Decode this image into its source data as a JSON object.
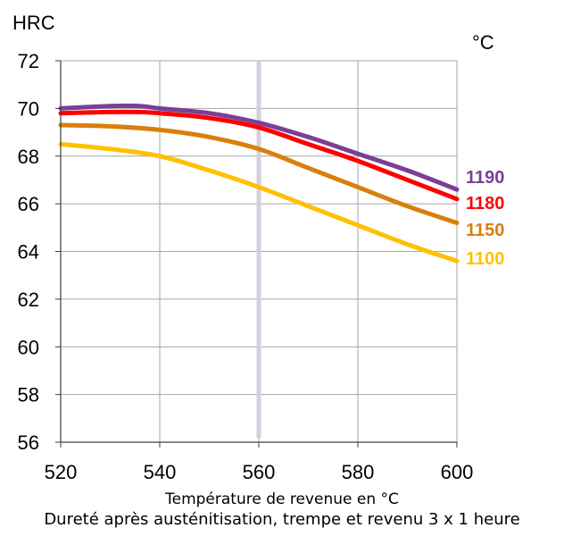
{
  "chart_data": {
    "type": "line",
    "ylabel": "HRC",
    "legend_unit": "°C",
    "xlabel": "Température de revenue en °C",
    "caption": "Dureté après austénitisation, trempe et revenu 3 x 1 heure",
    "xlim": [
      520,
      600
    ],
    "ylim": [
      56,
      72
    ],
    "x_ticks": [
      520,
      540,
      560,
      580,
      600
    ],
    "y_ticks": [
      56,
      58,
      60,
      62,
      64,
      66,
      68,
      70,
      72
    ],
    "grid": true,
    "reference_line_x": 560,
    "series": [
      {
        "name": "1190",
        "color": "#7B3F98",
        "x": [
          520,
          530,
          536,
          540,
          550,
          560,
          570,
          580,
          590,
          600
        ],
        "y": [
          70.0,
          70.1,
          70.1,
          70.0,
          69.8,
          69.4,
          68.8,
          68.1,
          67.4,
          66.6
        ]
      },
      {
        "name": "1180",
        "color": "#FF0000",
        "x": [
          520,
          530,
          536,
          540,
          550,
          560,
          570,
          580,
          590,
          600
        ],
        "y": [
          69.8,
          69.85,
          69.85,
          69.8,
          69.6,
          69.2,
          68.5,
          67.8,
          67.0,
          66.2
        ]
      },
      {
        "name": "1150",
        "color": "#DA7F0B",
        "x": [
          520,
          530,
          540,
          550,
          560,
          570,
          580,
          590,
          600
        ],
        "y": [
          69.3,
          69.25,
          69.1,
          68.8,
          68.3,
          67.5,
          66.7,
          65.9,
          65.2
        ]
      },
      {
        "name": "1100",
        "color": "#FFC000",
        "x": [
          520,
          530,
          540,
          550,
          560,
          570,
          580,
          590,
          600
        ],
        "y": [
          68.5,
          68.3,
          68.0,
          67.4,
          66.7,
          65.9,
          65.1,
          64.3,
          63.6
        ]
      }
    ]
  }
}
